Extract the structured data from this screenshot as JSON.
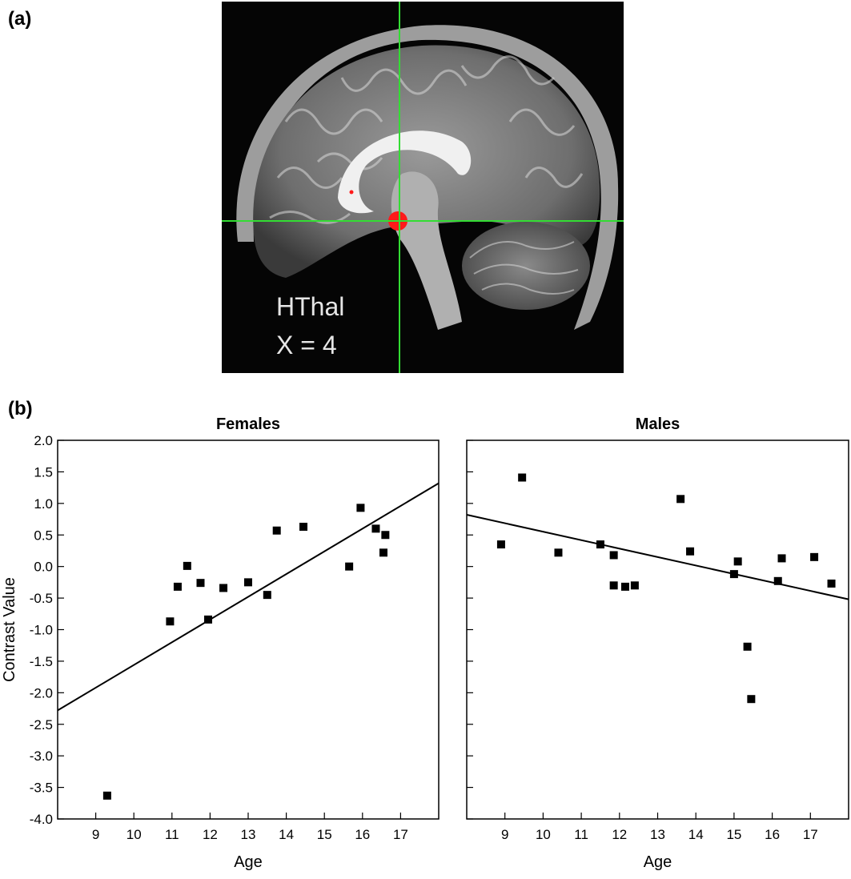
{
  "panels": {
    "a_label": "(a)",
    "b_label": "(b)"
  },
  "brain_image": {
    "region_label": "HThal",
    "slice_label": "X = 4",
    "crosshair_color": "#33dd33",
    "roi_color": "#ff1a1a"
  },
  "chart_data": [
    {
      "type": "scatter",
      "title": "Females",
      "xlabel": "Age",
      "ylabel": "Contrast Value",
      "xlim": [
        8,
        18
      ],
      "ylim": [
        -4.0,
        2.0
      ],
      "xticks": [
        "9",
        "10",
        "11",
        "12",
        "13",
        "14",
        "15",
        "16",
        "17"
      ],
      "yticks": [
        "2.0",
        "1.5",
        "1.0",
        "0.5",
        "0.0",
        "-0.5",
        "-1.0",
        "-1.5",
        "-2.0",
        "-2.5",
        "-3.0",
        "-3.5",
        "-4.0"
      ],
      "points": [
        {
          "x": 9.3,
          "y": -3.63
        },
        {
          "x": 10.95,
          "y": -0.87
        },
        {
          "x": 11.15,
          "y": -0.32
        },
        {
          "x": 11.4,
          "y": 0.01
        },
        {
          "x": 11.75,
          "y": -0.26
        },
        {
          "x": 11.95,
          "y": -0.84
        },
        {
          "x": 12.35,
          "y": -0.34
        },
        {
          "x": 13.0,
          "y": -0.25
        },
        {
          "x": 13.5,
          "y": -0.45
        },
        {
          "x": 13.75,
          "y": 0.57
        },
        {
          "x": 14.45,
          "y": 0.63
        },
        {
          "x": 15.65,
          "y": 0.0
        },
        {
          "x": 15.95,
          "y": 0.93
        },
        {
          "x": 16.35,
          "y": 0.6
        },
        {
          "x": 16.6,
          "y": 0.5
        },
        {
          "x": 16.55,
          "y": 0.22
        }
      ],
      "fit_line": {
        "x": [
          8,
          18
        ],
        "y": [
          -2.28,
          1.32
        ]
      }
    },
    {
      "type": "scatter",
      "title": "Males",
      "xlabel": "Age",
      "ylabel": "",
      "xlim": [
        8,
        18
      ],
      "ylim": [
        -4.0,
        2.0
      ],
      "xticks": [
        "9",
        "10",
        "11",
        "12",
        "13",
        "14",
        "15",
        "16",
        "17"
      ],
      "yticks": [],
      "points": [
        {
          "x": 8.9,
          "y": 0.35
        },
        {
          "x": 9.45,
          "y": 1.41
        },
        {
          "x": 10.4,
          "y": 0.22
        },
        {
          "x": 11.5,
          "y": 0.35
        },
        {
          "x": 11.85,
          "y": 0.18
        },
        {
          "x": 11.85,
          "y": -0.3
        },
        {
          "x": 12.15,
          "y": -0.32
        },
        {
          "x": 12.4,
          "y": -0.3
        },
        {
          "x": 13.6,
          "y": 1.07
        },
        {
          "x": 13.85,
          "y": 0.24
        },
        {
          "x": 15.0,
          "y": -0.12
        },
        {
          "x": 15.1,
          "y": 0.08
        },
        {
          "x": 15.35,
          "y": -1.27
        },
        {
          "x": 15.45,
          "y": -2.1
        },
        {
          "x": 16.15,
          "y": -0.23
        },
        {
          "x": 16.25,
          "y": 0.13
        },
        {
          "x": 17.1,
          "y": 0.15
        },
        {
          "x": 17.55,
          "y": -0.27
        }
      ],
      "fit_line": {
        "x": [
          8,
          18
        ],
        "y": [
          0.82,
          -0.52
        ]
      }
    }
  ]
}
